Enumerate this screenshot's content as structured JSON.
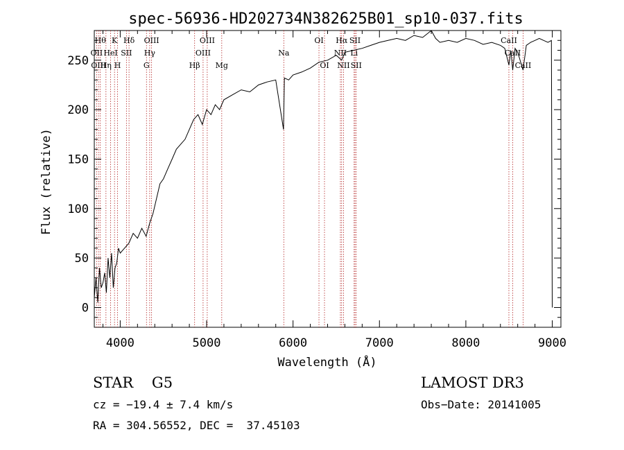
{
  "chart_data": {
    "type": "line",
    "title": "spec-56936-HD202734N382625B01_sp10-037.fits",
    "xlabel": "Wavelength (Å)",
    "ylabel": "Flux (relative)",
    "xlim": [
      3700,
      9100
    ],
    "ylim": [
      -20,
      280
    ],
    "x_ticks": [
      4000,
      5000,
      6000,
      7000,
      8000,
      9000
    ],
    "y_ticks": [
      0,
      50,
      100,
      150,
      200,
      250
    ],
    "grid": false,
    "line_color": "#000000",
    "marker_color": "#b22222",
    "series": [
      {
        "x": [
          3700,
          3720,
          3740,
          3760,
          3780,
          3800,
          3820,
          3840,
          3860,
          3880,
          3900,
          3920,
          3940,
          3960,
          3980,
          4000,
          4050,
          4100,
          4150,
          4200,
          4250,
          4300,
          4340,
          4380,
          4420,
          4460,
          4500,
          4550,
          4600,
          4650,
          4700,
          4750,
          4800,
          4850,
          4900,
          4950,
          5000,
          5050,
          5100,
          5150,
          5200,
          5300,
          5400,
          5500,
          5600,
          5700,
          5800,
          5890,
          5900,
          5950,
          6000,
          6100,
          6200,
          6300,
          6400,
          6500,
          6563,
          6600,
          6700,
          6800,
          6900,
          7000,
          7100,
          7200,
          7300,
          7400,
          7500,
          7600,
          7650,
          7700,
          7800,
          7900,
          8000,
          8100,
          8200,
          8300,
          8400,
          8450,
          8498,
          8520,
          8542,
          8570,
          8600,
          8662,
          8700,
          8750,
          8800,
          8850,
          8900,
          8950,
          8990,
          9000
        ],
        "y": [
          10,
          30,
          5,
          40,
          20,
          25,
          35,
          15,
          50,
          30,
          55,
          20,
          40,
          45,
          60,
          55,
          60,
          65,
          75,
          70,
          80,
          72,
          85,
          95,
          110,
          125,
          130,
          140,
          150,
          160,
          165,
          170,
          180,
          190,
          195,
          185,
          200,
          195,
          205,
          200,
          210,
          215,
          220,
          218,
          225,
          228,
          230,
          180,
          232,
          230,
          235,
          238,
          242,
          248,
          250,
          255,
          250,
          258,
          260,
          262,
          265,
          268,
          270,
          272,
          270,
          275,
          273,
          280,
          272,
          268,
          270,
          268,
          272,
          270,
          266,
          268,
          265,
          262,
          245,
          260,
          240,
          262,
          258,
          240,
          265,
          268,
          270,
          272,
          270,
          268,
          270,
          0
        ]
      }
    ],
    "lines": [
      {
        "wl": 3727,
        "label": "OII",
        "row": 1
      },
      {
        "wl": 3750,
        "label": "OIII",
        "row": 2
      },
      {
        "wl": 3770,
        "label": "Hθ",
        "row": 0
      },
      {
        "wl": 3835,
        "label": "Hη",
        "row": 2
      },
      {
        "wl": 3889,
        "label": "HeI",
        "row": 1
      },
      {
        "wl": 3934,
        "label": "K",
        "row": 0
      },
      {
        "wl": 3969,
        "label": "H",
        "row": 2
      },
      {
        "wl": 4072,
        "label": "SII",
        "row": 1
      },
      {
        "wl": 4102,
        "label": "Hδ",
        "row": 0
      },
      {
        "wl": 4304,
        "label": "G",
        "row": 2
      },
      {
        "wl": 4341,
        "label": "Hγ",
        "row": 1
      },
      {
        "wl": 4363,
        "label": "OIII",
        "row": 0
      },
      {
        "wl": 4861,
        "label": "Hβ",
        "row": 2
      },
      {
        "wl": 4959,
        "label": "OIII",
        "row": 1
      },
      {
        "wl": 5007,
        "label": "OIII",
        "row": 0
      },
      {
        "wl": 5175,
        "label": "Mg",
        "row": 2
      },
      {
        "wl": 5893,
        "label": "Na",
        "row": 1
      },
      {
        "wl": 6300,
        "label": "OI",
        "row": 0
      },
      {
        "wl": 6364,
        "label": "OI",
        "row": 2
      },
      {
        "wl": 6548,
        "label": "NII",
        "row": 1
      },
      {
        "wl": 6563,
        "label": "Hα",
        "row": 0
      },
      {
        "wl": 6584,
        "label": "NII",
        "row": 2
      },
      {
        "wl": 6707,
        "label": "Li",
        "row": 1
      },
      {
        "wl": 6717,
        "label": "SII",
        "row": 0
      },
      {
        "wl": 6731,
        "label": "SII",
        "row": 2
      },
      {
        "wl": 8498,
        "label": "CaII",
        "row": 0
      },
      {
        "wl": 8542,
        "label": "CaII",
        "row": 1
      },
      {
        "wl": 8662,
        "label": "CaII",
        "row": 2
      }
    ]
  },
  "info": {
    "class_line": "STAR    G5",
    "survey": "LAMOST DR3",
    "cz": "cz = −19.4 ± 7.4 km/s",
    "obs_date": "Obs−Date: 20141005",
    "radec": "RA = 304.56552, DEC =  37.45103"
  }
}
